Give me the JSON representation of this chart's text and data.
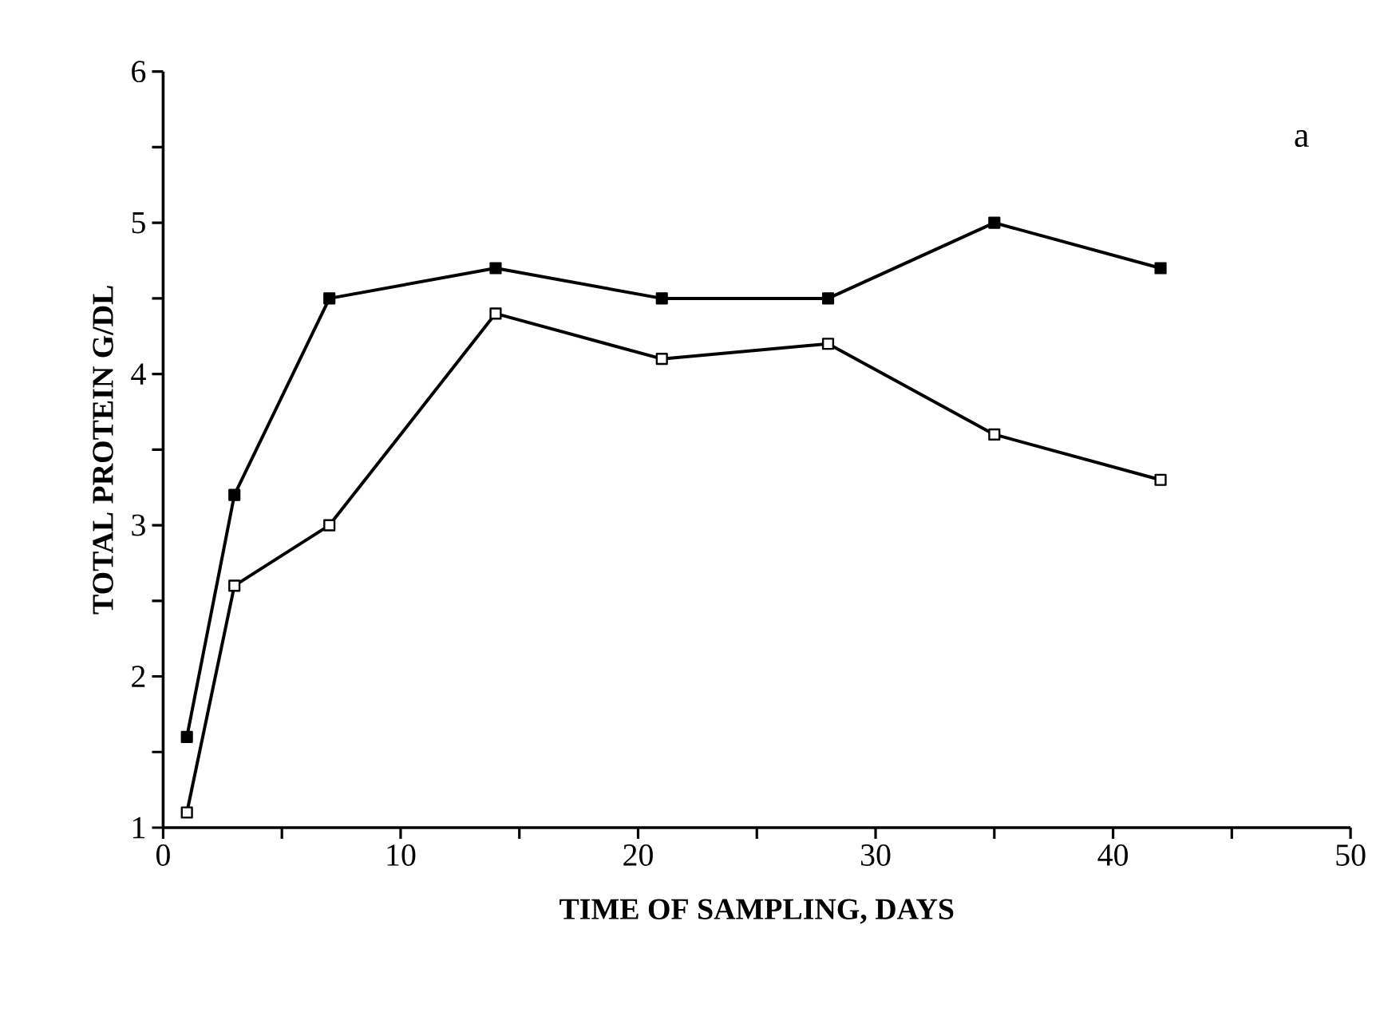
{
  "chart_data": {
    "type": "line",
    "xlabel": "TIME OF SAMPLING, DAYS",
    "ylabel": "TOTAL  PROTEIN  G/DL",
    "annotations": [
      "a"
    ],
    "x": [
      1,
      3,
      7,
      14,
      21,
      28,
      35,
      42
    ],
    "series": [
      {
        "color": "#000000",
        "marker": "square*",
        "values": [
          1.6,
          3.2,
          4.5,
          4.7,
          4.5,
          4.5,
          5.0,
          4.7
        ]
      },
      {
        "color": "#000000",
        "marker": "square",
        "values": [
          1.1,
          2.6,
          3.0,
          4.4,
          4.1,
          4.2,
          3.6,
          3.3
        ]
      }
    ],
    "xlim": [
      0,
      50
    ],
    "ylim": [
      1,
      6
    ],
    "xticks": [
      0,
      {
        "value": 5,
        "label": null
      },
      10,
      {
        "value": 15,
        "label": null
      },
      20,
      {
        "value": 25,
        "label": null
      },
      30,
      {
        "value": 35,
        "label": null
      },
      40,
      {
        "value": 45,
        "label": null
      },
      50
    ],
    "yticks": [
      1,
      {
        "value": 1.5,
        "label": null
      },
      2,
      {
        "value": 2.5,
        "label": null
      },
      3,
      {
        "value": 3.5,
        "label": null
      },
      4,
      {
        "value": 4.5,
        "label": null
      },
      5,
      {
        "value": 5.5,
        "label": null
      },
      6
    ],
    "grid": false,
    "line_style": "solid"
  }
}
